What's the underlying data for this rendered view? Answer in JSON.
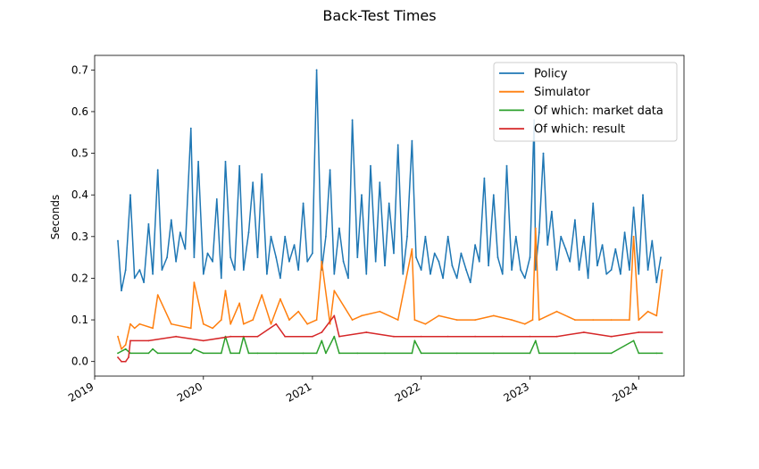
{
  "chart_data": {
    "type": "line",
    "title": "Back-Test Times",
    "xlabel": "",
    "ylabel": "Seconds",
    "xlim": [
      "2019-01-01",
      "2024-06-01"
    ],
    "ylim": [
      -0.035,
      0.735
    ],
    "x_ticks": [
      "2019",
      "2020",
      "2021",
      "2022",
      "2023",
      "2024"
    ],
    "y_ticks": [
      "0.0",
      "0.1",
      "0.2",
      "0.3",
      "0.4",
      "0.5",
      "0.6",
      "0.7"
    ],
    "grid": false,
    "legend_position": "top-right",
    "series": [
      {
        "name": "Policy",
        "color": "#1f77b4",
        "x": [
          "2019-03-20",
          "2019-04-01",
          "2019-04-15",
          "2019-05-01",
          "2019-05-15",
          "2019-06-01",
          "2019-06-15",
          "2019-07-01",
          "2019-07-15",
          "2019-08-01",
          "2019-08-15",
          "2019-09-01",
          "2019-09-15",
          "2019-10-01",
          "2019-10-15",
          "2019-11-01",
          "2019-11-20",
          "2019-12-01",
          "2019-12-15",
          "2020-01-01",
          "2020-01-15",
          "2020-02-01",
          "2020-02-15",
          "2020-03-01",
          "2020-03-15",
          "2020-04-01",
          "2020-04-15",
          "2020-05-01",
          "2020-05-15",
          "2020-06-01",
          "2020-06-15",
          "2020-07-01",
          "2020-07-15",
          "2020-08-01",
          "2020-08-15",
          "2020-09-01",
          "2020-09-15",
          "2020-10-01",
          "2020-10-15",
          "2020-11-01",
          "2020-11-15",
          "2020-12-01",
          "2020-12-15",
          "2021-01-01",
          "2021-01-15",
          "2021-02-01",
          "2021-02-15",
          "2021-03-01",
          "2021-03-15",
          "2021-04-01",
          "2021-04-15",
          "2021-05-01",
          "2021-05-15",
          "2021-06-01",
          "2021-06-15",
          "2021-07-01",
          "2021-07-15",
          "2021-08-01",
          "2021-08-15",
          "2021-09-01",
          "2021-09-15",
          "2021-10-01",
          "2021-10-15",
          "2021-11-01",
          "2021-11-15",
          "2021-12-01",
          "2021-12-15",
          "2022-01-01",
          "2022-01-15",
          "2022-02-01",
          "2022-02-15",
          "2022-03-01",
          "2022-03-15",
          "2022-04-01",
          "2022-04-15",
          "2022-05-01",
          "2022-05-15",
          "2022-06-01",
          "2022-06-15",
          "2022-07-01",
          "2022-07-15",
          "2022-08-01",
          "2022-08-15",
          "2022-09-01",
          "2022-09-15",
          "2022-10-01",
          "2022-10-15",
          "2022-11-01",
          "2022-11-15",
          "2022-12-01",
          "2022-12-15",
          "2023-01-01",
          "2023-01-15",
          "2023-01-20",
          "2023-02-01",
          "2023-02-15",
          "2023-03-01",
          "2023-03-15",
          "2023-04-01",
          "2023-04-15",
          "2023-05-01",
          "2023-05-15",
          "2023-06-01",
          "2023-06-15",
          "2023-07-01",
          "2023-07-15",
          "2023-08-01",
          "2023-08-15",
          "2023-09-01",
          "2023-09-15",
          "2023-10-01",
          "2023-10-15",
          "2023-11-01",
          "2023-11-15",
          "2023-12-01",
          "2023-12-15",
          "2024-01-01",
          "2024-01-15",
          "2024-02-01",
          "2024-02-15",
          "2024-03-01",
          "2024-03-15"
        ],
        "values": [
          0.29,
          0.17,
          0.22,
          0.4,
          0.2,
          0.22,
          0.19,
          0.33,
          0.21,
          0.46,
          0.22,
          0.25,
          0.34,
          0.24,
          0.31,
          0.27,
          0.56,
          0.25,
          0.48,
          0.21,
          0.26,
          0.24,
          0.39,
          0.2,
          0.48,
          0.25,
          0.22,
          0.47,
          0.22,
          0.31,
          0.43,
          0.25,
          0.45,
          0.21,
          0.3,
          0.25,
          0.2,
          0.3,
          0.24,
          0.28,
          0.22,
          0.38,
          0.24,
          0.26,
          0.7,
          0.22,
          0.3,
          0.46,
          0.21,
          0.32,
          0.24,
          0.2,
          0.58,
          0.25,
          0.4,
          0.21,
          0.47,
          0.24,
          0.43,
          0.23,
          0.38,
          0.26,
          0.52,
          0.21,
          0.3,
          0.53,
          0.25,
          0.22,
          0.3,
          0.21,
          0.26,
          0.24,
          0.2,
          0.3,
          0.23,
          0.2,
          0.26,
          0.22,
          0.19,
          0.28,
          0.24,
          0.44,
          0.23,
          0.4,
          0.25,
          0.21,
          0.47,
          0.22,
          0.3,
          0.22,
          0.2,
          0.25,
          0.58,
          0.22,
          0.31,
          0.5,
          0.28,
          0.36,
          0.22,
          0.3,
          0.27,
          0.24,
          0.34,
          0.22,
          0.3,
          0.2,
          0.38,
          0.23,
          0.28,
          0.21,
          0.22,
          0.27,
          0.21,
          0.31,
          0.22,
          0.37,
          0.21,
          0.4,
          0.22,
          0.29,
          0.19,
          0.25
        ]
      },
      {
        "name": "Simulator",
        "color": "#ff7f0e",
        "x": [
          "2019-03-20",
          "2019-04-01",
          "2019-04-15",
          "2019-05-01",
          "2019-05-15",
          "2019-06-01",
          "2019-07-15",
          "2019-08-01",
          "2019-09-15",
          "2019-11-20",
          "2019-12-01",
          "2020-01-01",
          "2020-02-01",
          "2020-03-01",
          "2020-03-15",
          "2020-04-01",
          "2020-05-01",
          "2020-05-15",
          "2020-06-15",
          "2020-07-15",
          "2020-08-15",
          "2020-09-15",
          "2020-10-15",
          "2020-11-15",
          "2020-12-15",
          "2021-01-15",
          "2021-02-01",
          "2021-03-01",
          "2021-03-15",
          "2021-05-15",
          "2021-06-15",
          "2021-08-15",
          "2021-10-15",
          "2021-12-01",
          "2021-12-10",
          "2022-01-15",
          "2022-03-01",
          "2022-05-01",
          "2022-07-01",
          "2022-09-01",
          "2022-11-01",
          "2022-12-15",
          "2023-01-10",
          "2023-01-20",
          "2023-02-01",
          "2023-04-01",
          "2023-06-01",
          "2023-08-01",
          "2023-10-01",
          "2023-12-01",
          "2023-12-15",
          "2024-01-01",
          "2024-02-01",
          "2024-03-01",
          "2024-03-20"
        ],
        "values": [
          0.06,
          0.03,
          0.04,
          0.09,
          0.08,
          0.09,
          0.08,
          0.16,
          0.09,
          0.08,
          0.19,
          0.09,
          0.08,
          0.1,
          0.17,
          0.09,
          0.14,
          0.09,
          0.1,
          0.16,
          0.09,
          0.15,
          0.1,
          0.12,
          0.09,
          0.1,
          0.24,
          0.09,
          0.17,
          0.1,
          0.11,
          0.12,
          0.1,
          0.27,
          0.1,
          0.09,
          0.11,
          0.1,
          0.1,
          0.11,
          0.1,
          0.09,
          0.1,
          0.32,
          0.1,
          0.12,
          0.1,
          0.1,
          0.1,
          0.1,
          0.3,
          0.1,
          0.12,
          0.11,
          0.22
        ]
      },
      {
        "name": "Of which: market data",
        "color": "#2ca02c",
        "x": [
          "2019-03-20",
          "2019-04-15",
          "2019-05-01",
          "2019-07-01",
          "2019-07-15",
          "2019-08-01",
          "2019-11-20",
          "2019-12-01",
          "2020-01-01",
          "2020-03-01",
          "2020-03-15",
          "2020-04-01",
          "2020-05-01",
          "2020-05-15",
          "2020-06-01",
          "2020-07-01",
          "2020-09-01",
          "2020-12-01",
          "2021-01-15",
          "2021-02-01",
          "2021-02-15",
          "2021-03-15",
          "2021-04-01",
          "2021-06-01",
          "2021-09-01",
          "2021-12-01",
          "2021-12-10",
          "2022-01-01",
          "2022-05-01",
          "2022-09-01",
          "2023-01-01",
          "2023-01-20",
          "2023-02-01",
          "2023-06-01",
          "2023-10-01",
          "2023-12-15",
          "2024-01-01",
          "2024-03-01",
          "2024-03-20"
        ],
        "values": [
          0.02,
          0.03,
          0.02,
          0.02,
          0.03,
          0.02,
          0.02,
          0.03,
          0.02,
          0.02,
          0.06,
          0.02,
          0.02,
          0.06,
          0.02,
          0.02,
          0.02,
          0.02,
          0.02,
          0.05,
          0.02,
          0.06,
          0.02,
          0.02,
          0.02,
          0.02,
          0.05,
          0.02,
          0.02,
          0.02,
          0.02,
          0.05,
          0.02,
          0.02,
          0.02,
          0.05,
          0.02,
          0.02,
          0.02
        ]
      },
      {
        "name": "Of which: result",
        "color": "#d62728",
        "x": [
          "2019-03-20",
          "2019-04-01",
          "2019-04-15",
          "2019-04-25",
          "2019-05-01",
          "2019-07-01",
          "2019-10-01",
          "2020-01-01",
          "2020-04-01",
          "2020-07-01",
          "2020-09-01",
          "2020-10-01",
          "2021-01-01",
          "2021-02-01",
          "2021-03-15",
          "2021-04-01",
          "2021-07-01",
          "2021-10-01",
          "2022-01-01",
          "2022-04-01",
          "2022-07-01",
          "2022-10-01",
          "2023-01-01",
          "2023-04-01",
          "2023-07-01",
          "2023-10-01",
          "2024-01-01",
          "2024-03-20"
        ],
        "values": [
          0.01,
          0.0,
          0.0,
          0.01,
          0.05,
          0.05,
          0.06,
          0.05,
          0.06,
          0.06,
          0.09,
          0.06,
          0.06,
          0.07,
          0.11,
          0.06,
          0.07,
          0.06,
          0.06,
          0.06,
          0.06,
          0.06,
          0.06,
          0.06,
          0.07,
          0.06,
          0.07,
          0.07
        ]
      }
    ]
  }
}
